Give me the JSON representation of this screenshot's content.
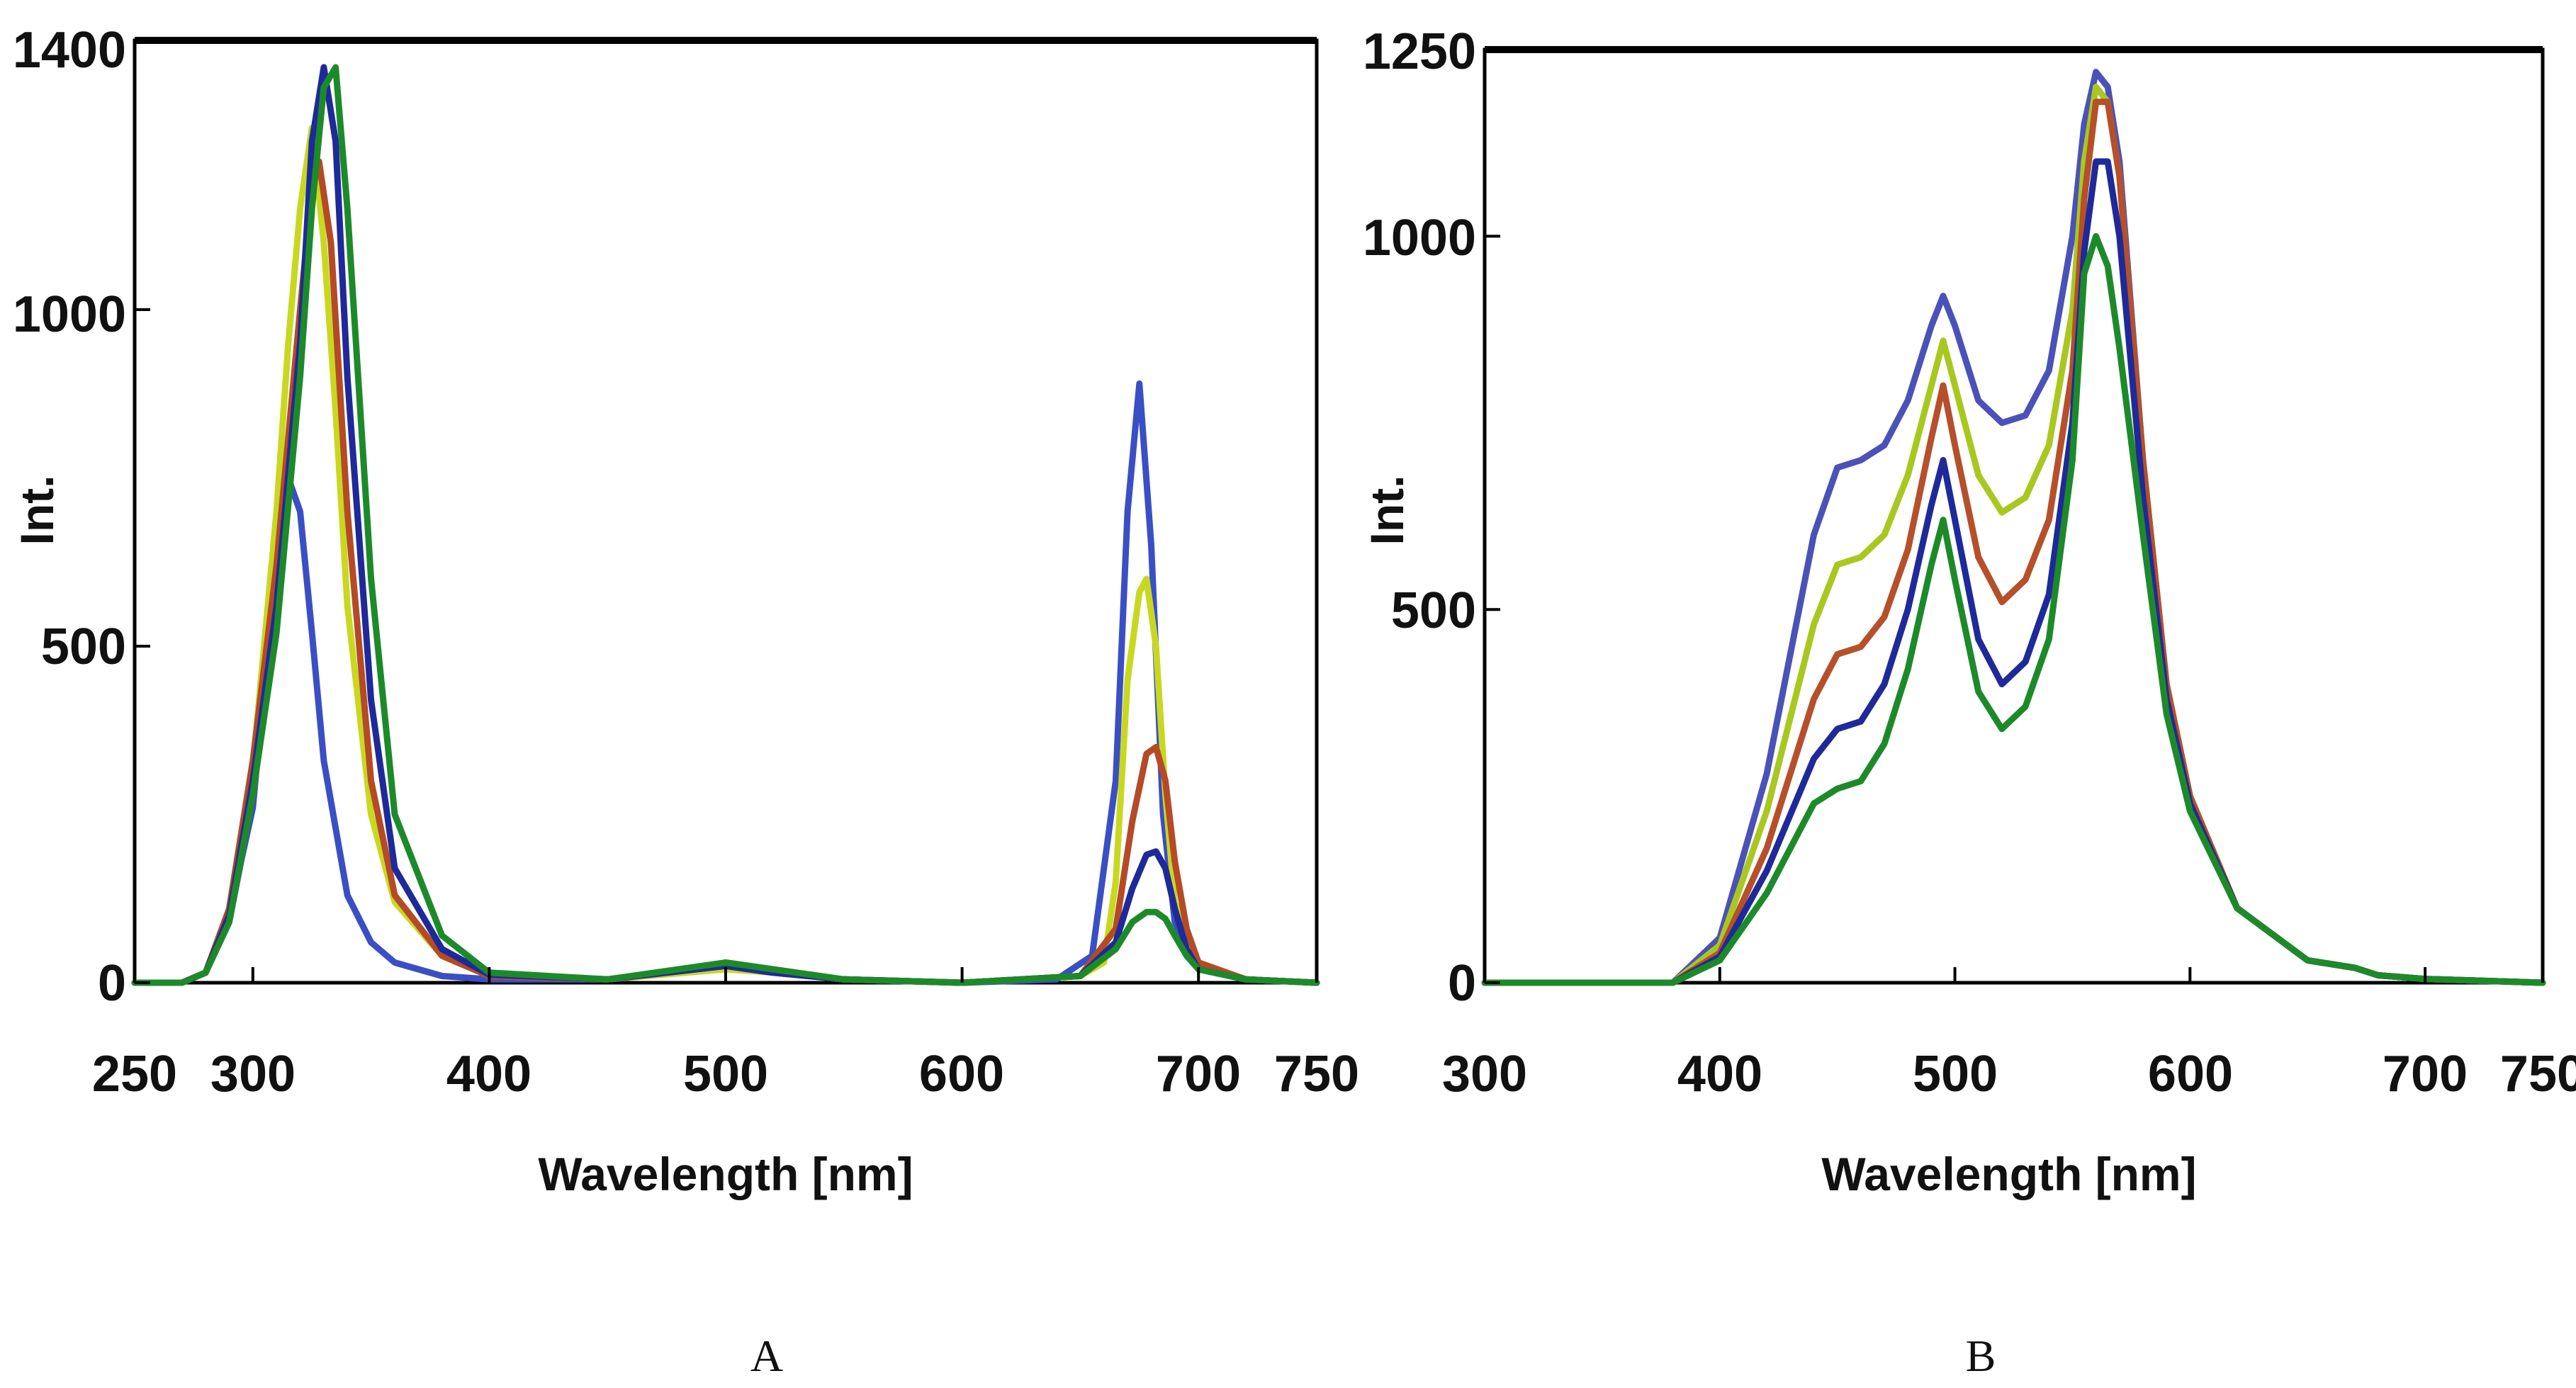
{
  "chart_data": [
    {
      "panel": "A",
      "type": "line",
      "xlabel": "Wavelength [nm]",
      "ylabel": "Int.",
      "xlim": [
        250,
        750
      ],
      "ylim": [
        0,
        1400
      ],
      "xticks": [
        250,
        300,
        400,
        500,
        600,
        700,
        750
      ],
      "yticks": [
        0,
        500,
        1000,
        1400
      ],
      "grid": false,
      "series": [
        {
          "color": "#3a4fc4",
          "x": [
            250,
            270,
            280,
            290,
            295,
            300,
            305,
            310,
            315,
            320,
            325,
            330,
            340,
            350,
            360,
            380,
            400,
            450,
            480,
            500,
            520,
            550,
            600,
            640,
            655,
            665,
            670,
            675,
            680,
            685,
            690,
            700,
            720,
            750
          ],
          "y": [
            0,
            0,
            15,
            90,
            180,
            260,
            450,
            680,
            750,
            700,
            520,
            330,
            130,
            60,
            30,
            10,
            5,
            5,
            15,
            25,
            15,
            5,
            0,
            5,
            40,
            300,
            700,
            890,
            650,
            250,
            90,
            20,
            5,
            0
          ]
        },
        {
          "color": "#c8d820",
          "x": [
            250,
            270,
            280,
            290,
            300,
            310,
            315,
            320,
            325,
            330,
            335,
            340,
            350,
            360,
            380,
            400,
            450,
            500,
            520,
            550,
            600,
            650,
            660,
            665,
            670,
            675,
            678,
            682,
            686,
            690,
            700,
            720,
            750
          ],
          "y": [
            0,
            0,
            15,
            100,
            320,
            700,
            950,
            1150,
            1270,
            1100,
            850,
            560,
            250,
            120,
            40,
            10,
            5,
            20,
            15,
            5,
            0,
            10,
            30,
            150,
            450,
            580,
            600,
            500,
            280,
            120,
            30,
            5,
            0
          ]
        },
        {
          "color": "#b54a26",
          "x": [
            250,
            270,
            280,
            290,
            300,
            310,
            320,
            325,
            328,
            333,
            340,
            350,
            360,
            380,
            400,
            450,
            500,
            520,
            550,
            600,
            650,
            665,
            672,
            678,
            682,
            686,
            690,
            695,
            700,
            720,
            750
          ],
          "y": [
            0,
            0,
            15,
            110,
            330,
            620,
            1000,
            1180,
            1220,
            1100,
            700,
            300,
            130,
            40,
            10,
            5,
            25,
            15,
            5,
            0,
            10,
            80,
            240,
            340,
            350,
            300,
            180,
            80,
            30,
            5,
            0
          ]
        },
        {
          "color": "#1e2a9a",
          "x": [
            250,
            270,
            280,
            290,
            300,
            310,
            320,
            325,
            330,
            335,
            340,
            350,
            360,
            380,
            400,
            450,
            500,
            520,
            550,
            600,
            650,
            665,
            672,
            678,
            682,
            686,
            690,
            695,
            700,
            720,
            750
          ],
          "y": [
            0,
            0,
            15,
            100,
            300,
            560,
            950,
            1250,
            1360,
            1250,
            900,
            420,
            170,
            50,
            12,
            5,
            25,
            15,
            5,
            0,
            10,
            60,
            140,
            190,
            195,
            170,
            110,
            50,
            20,
            5,
            0
          ]
        },
        {
          "color": "#1d8a2a",
          "x": [
            250,
            270,
            280,
            290,
            300,
            310,
            320,
            325,
            330,
            335,
            340,
            350,
            360,
            380,
            400,
            450,
            500,
            520,
            550,
            600,
            650,
            665,
            672,
            678,
            682,
            686,
            690,
            695,
            700,
            720,
            750
          ],
          "y": [
            0,
            0,
            15,
            90,
            280,
            520,
            900,
            1150,
            1330,
            1360,
            1150,
            600,
            250,
            70,
            15,
            5,
            30,
            20,
            5,
            0,
            10,
            50,
            90,
            105,
            105,
            95,
            70,
            40,
            20,
            5,
            0
          ]
        }
      ]
    },
    {
      "panel": "B",
      "type": "line",
      "xlabel": "Wavelength [nm]",
      "ylabel": "Int.",
      "xlim": [
        300,
        750
      ],
      "ylim": [
        0,
        1250
      ],
      "xticks": [
        300,
        400,
        500,
        600,
        700,
        750
      ],
      "yticks": [
        0,
        500,
        1000,
        1250
      ],
      "grid": false,
      "series": [
        {
          "color": "#4a52b8",
          "x": [
            300,
            380,
            400,
            420,
            440,
            450,
            460,
            470,
            480,
            490,
            495,
            500,
            510,
            520,
            530,
            540,
            550,
            555,
            560,
            565,
            570,
            580,
            590,
            600,
            620,
            650,
            670,
            680,
            700,
            750
          ],
          "y": [
            0,
            0,
            60,
            280,
            600,
            690,
            700,
            720,
            780,
            880,
            920,
            880,
            780,
            750,
            760,
            820,
            1000,
            1150,
            1220,
            1200,
            1100,
            700,
            400,
            250,
            100,
            30,
            20,
            10,
            5,
            0
          ]
        },
        {
          "color": "#a8c820",
          "x": [
            300,
            380,
            400,
            420,
            440,
            450,
            460,
            470,
            480,
            490,
            495,
            500,
            510,
            520,
            530,
            540,
            550,
            555,
            560,
            565,
            570,
            580,
            590,
            600,
            620,
            650,
            670,
            680,
            700,
            750
          ],
          "y": [
            0,
            0,
            50,
            230,
            480,
            560,
            570,
            600,
            680,
            800,
            860,
            800,
            680,
            630,
            650,
            720,
            900,
            1100,
            1200,
            1180,
            1080,
            700,
            400,
            250,
            100,
            30,
            20,
            10,
            5,
            0
          ]
        },
        {
          "color": "#b5502a",
          "x": [
            300,
            380,
            400,
            420,
            440,
            450,
            460,
            470,
            480,
            490,
            495,
            500,
            510,
            520,
            530,
            540,
            550,
            555,
            560,
            565,
            570,
            580,
            590,
            600,
            620,
            650,
            670,
            680,
            700,
            750
          ],
          "y": [
            0,
            0,
            40,
            180,
            380,
            440,
            450,
            490,
            580,
            730,
            800,
            720,
            570,
            510,
            540,
            620,
            820,
            1050,
            1180,
            1180,
            1080,
            700,
            400,
            250,
            100,
            30,
            20,
            10,
            5,
            0
          ]
        },
        {
          "color": "#1e2a9a",
          "x": [
            300,
            380,
            400,
            420,
            440,
            450,
            460,
            470,
            480,
            490,
            495,
            500,
            510,
            520,
            530,
            540,
            550,
            555,
            560,
            565,
            570,
            580,
            590,
            600,
            620,
            650,
            670,
            680,
            700,
            750
          ],
          "y": [
            0,
            0,
            35,
            150,
            300,
            340,
            350,
            400,
            500,
            640,
            700,
            620,
            460,
            400,
            430,
            520,
            750,
            980,
            1100,
            1100,
            1000,
            650,
            380,
            240,
            100,
            30,
            20,
            10,
            5,
            0
          ]
        },
        {
          "color": "#1d8a2a",
          "x": [
            300,
            380,
            400,
            420,
            440,
            450,
            460,
            470,
            480,
            490,
            495,
            500,
            510,
            520,
            530,
            540,
            550,
            555,
            560,
            565,
            570,
            580,
            590,
            600,
            620,
            650,
            670,
            680,
            700,
            750
          ],
          "y": [
            0,
            0,
            30,
            120,
            240,
            260,
            270,
            320,
            420,
            560,
            620,
            540,
            390,
            340,
            370,
            460,
            700,
            950,
            1000,
            960,
            850,
            600,
            360,
            230,
            100,
            30,
            20,
            10,
            5,
            0
          ]
        }
      ]
    }
  ],
  "panels": [
    {
      "letter": "A",
      "ylabel": "Int.",
      "xlabel": "Wavelength [nm]",
      "xtick_labels": [
        "250",
        "300",
        "400",
        "500",
        "600",
        "700",
        "750"
      ],
      "ytick_labels": [
        "0",
        "500",
        "1000",
        "1400"
      ]
    },
    {
      "letter": "B",
      "ylabel": "Int.",
      "xlabel": "Wavelength [nm]",
      "xtick_labels": [
        "300",
        "400",
        "500",
        "600",
        "700",
        "750"
      ],
      "ytick_labels": [
        "0",
        "500",
        "1000",
        "1250"
      ]
    }
  ]
}
